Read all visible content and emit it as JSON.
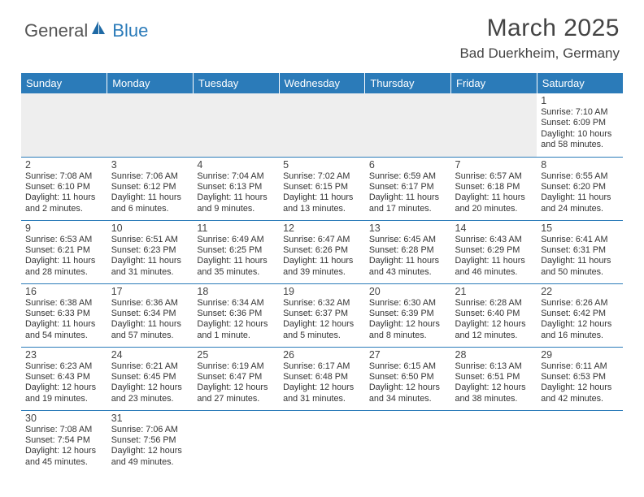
{
  "logo": {
    "general": "General",
    "blue": "Blue"
  },
  "title": "March 2025",
  "location": "Bad Duerkheim, Germany",
  "weekdays": [
    "Sunday",
    "Monday",
    "Tuesday",
    "Wednesday",
    "Thursday",
    "Friday",
    "Saturday"
  ],
  "header_bg": "#2b7bb9",
  "header_fg": "#ffffff",
  "grid_border": "#2b7bb9",
  "first_row_empty_bg": "#eeeeee",
  "font_family": "Arial",
  "blank_leading_cells": 6,
  "days": [
    {
      "n": "1",
      "sunrise": "7:10 AM",
      "sunset": "6:09 PM",
      "daylight": "10 hours and 58 minutes."
    },
    {
      "n": "2",
      "sunrise": "7:08 AM",
      "sunset": "6:10 PM",
      "daylight": "11 hours and 2 minutes."
    },
    {
      "n": "3",
      "sunrise": "7:06 AM",
      "sunset": "6:12 PM",
      "daylight": "11 hours and 6 minutes."
    },
    {
      "n": "4",
      "sunrise": "7:04 AM",
      "sunset": "6:13 PM",
      "daylight": "11 hours and 9 minutes."
    },
    {
      "n": "5",
      "sunrise": "7:02 AM",
      "sunset": "6:15 PM",
      "daylight": "11 hours and 13 minutes."
    },
    {
      "n": "6",
      "sunrise": "6:59 AM",
      "sunset": "6:17 PM",
      "daylight": "11 hours and 17 minutes."
    },
    {
      "n": "7",
      "sunrise": "6:57 AM",
      "sunset": "6:18 PM",
      "daylight": "11 hours and 20 minutes."
    },
    {
      "n": "8",
      "sunrise": "6:55 AM",
      "sunset": "6:20 PM",
      "daylight": "11 hours and 24 minutes."
    },
    {
      "n": "9",
      "sunrise": "6:53 AM",
      "sunset": "6:21 PM",
      "daylight": "11 hours and 28 minutes."
    },
    {
      "n": "10",
      "sunrise": "6:51 AM",
      "sunset": "6:23 PM",
      "daylight": "11 hours and 31 minutes."
    },
    {
      "n": "11",
      "sunrise": "6:49 AM",
      "sunset": "6:25 PM",
      "daylight": "11 hours and 35 minutes."
    },
    {
      "n": "12",
      "sunrise": "6:47 AM",
      "sunset": "6:26 PM",
      "daylight": "11 hours and 39 minutes."
    },
    {
      "n": "13",
      "sunrise": "6:45 AM",
      "sunset": "6:28 PM",
      "daylight": "11 hours and 43 minutes."
    },
    {
      "n": "14",
      "sunrise": "6:43 AM",
      "sunset": "6:29 PM",
      "daylight": "11 hours and 46 minutes."
    },
    {
      "n": "15",
      "sunrise": "6:41 AM",
      "sunset": "6:31 PM",
      "daylight": "11 hours and 50 minutes."
    },
    {
      "n": "16",
      "sunrise": "6:38 AM",
      "sunset": "6:33 PM",
      "daylight": "11 hours and 54 minutes."
    },
    {
      "n": "17",
      "sunrise": "6:36 AM",
      "sunset": "6:34 PM",
      "daylight": "11 hours and 57 minutes."
    },
    {
      "n": "18",
      "sunrise": "6:34 AM",
      "sunset": "6:36 PM",
      "daylight": "12 hours and 1 minute."
    },
    {
      "n": "19",
      "sunrise": "6:32 AM",
      "sunset": "6:37 PM",
      "daylight": "12 hours and 5 minutes."
    },
    {
      "n": "20",
      "sunrise": "6:30 AM",
      "sunset": "6:39 PM",
      "daylight": "12 hours and 8 minutes."
    },
    {
      "n": "21",
      "sunrise": "6:28 AM",
      "sunset": "6:40 PM",
      "daylight": "12 hours and 12 minutes."
    },
    {
      "n": "22",
      "sunrise": "6:26 AM",
      "sunset": "6:42 PM",
      "daylight": "12 hours and 16 minutes."
    },
    {
      "n": "23",
      "sunrise": "6:23 AM",
      "sunset": "6:43 PM",
      "daylight": "12 hours and 19 minutes."
    },
    {
      "n": "24",
      "sunrise": "6:21 AM",
      "sunset": "6:45 PM",
      "daylight": "12 hours and 23 minutes."
    },
    {
      "n": "25",
      "sunrise": "6:19 AM",
      "sunset": "6:47 PM",
      "daylight": "12 hours and 27 minutes."
    },
    {
      "n": "26",
      "sunrise": "6:17 AM",
      "sunset": "6:48 PM",
      "daylight": "12 hours and 31 minutes."
    },
    {
      "n": "27",
      "sunrise": "6:15 AM",
      "sunset": "6:50 PM",
      "daylight": "12 hours and 34 minutes."
    },
    {
      "n": "28",
      "sunrise": "6:13 AM",
      "sunset": "6:51 PM",
      "daylight": "12 hours and 38 minutes."
    },
    {
      "n": "29",
      "sunrise": "6:11 AM",
      "sunset": "6:53 PM",
      "daylight": "12 hours and 42 minutes."
    },
    {
      "n": "30",
      "sunrise": "7:08 AM",
      "sunset": "7:54 PM",
      "daylight": "12 hours and 45 minutes."
    },
    {
      "n": "31",
      "sunrise": "7:06 AM",
      "sunset": "7:56 PM",
      "daylight": "12 hours and 49 minutes."
    }
  ]
}
